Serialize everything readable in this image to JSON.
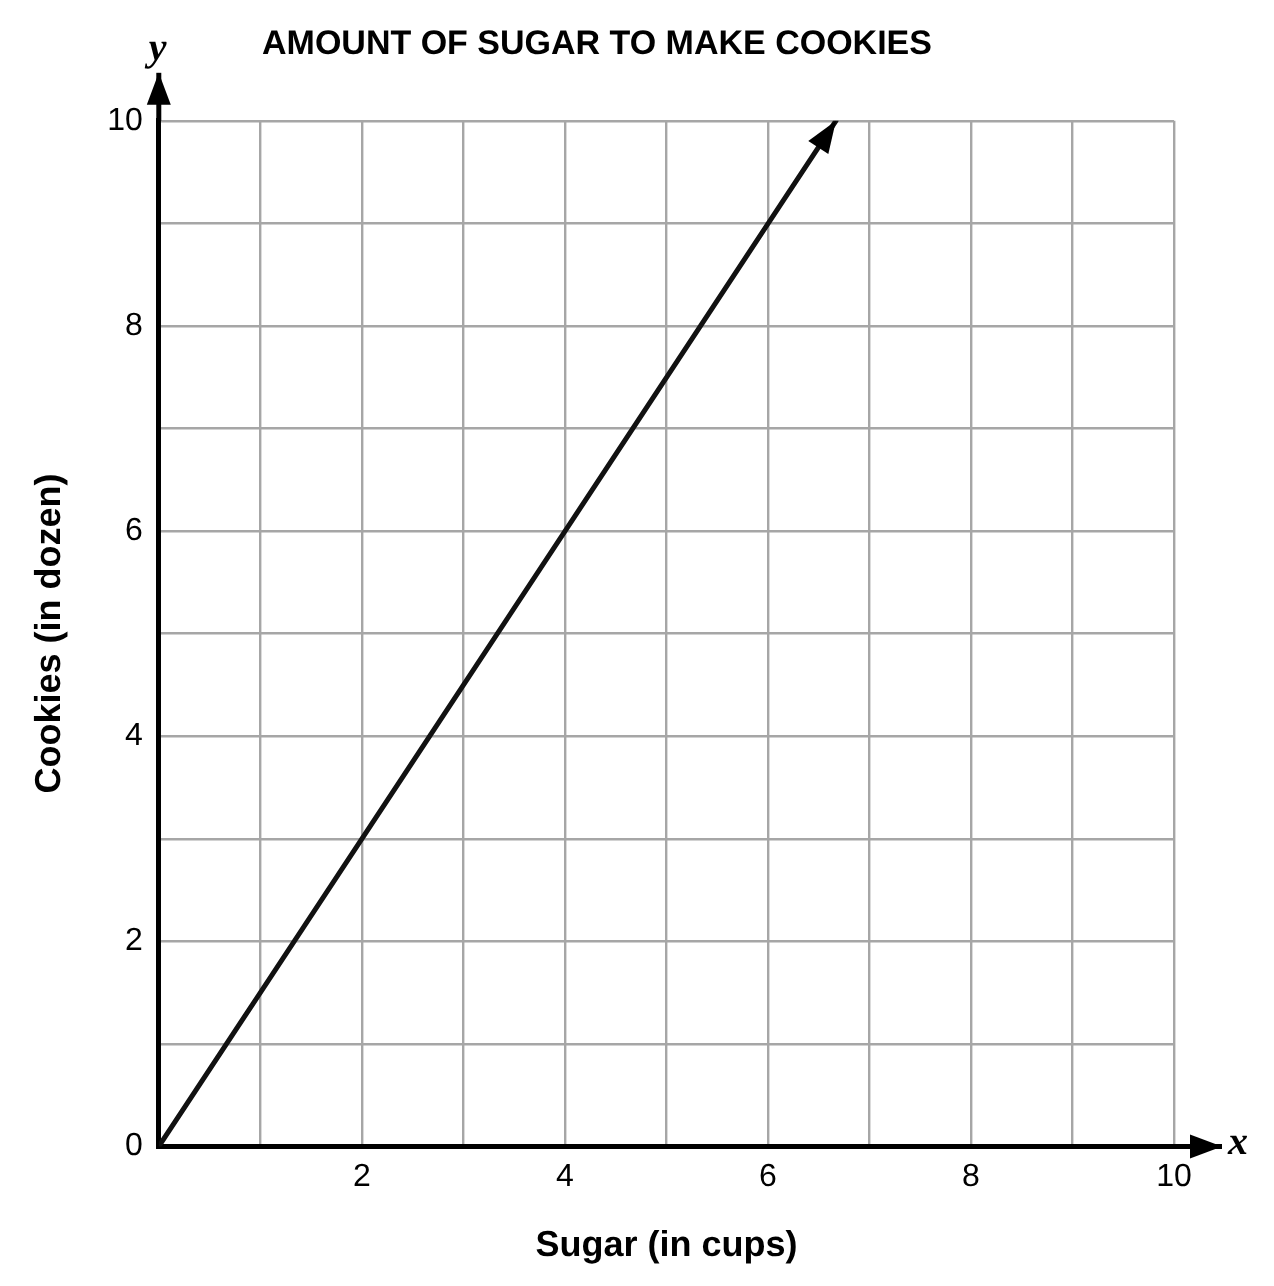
{
  "chart_data": {
    "type": "line",
    "title": "AMOUNT OF SUGAR TO MAKE COOKIES",
    "xlabel": "Sugar (in cups)",
    "ylabel": "Cookies (in dozen)",
    "annotations": [
      "x",
      "y"
    ],
    "x": [
      0,
      6.67
    ],
    "series": [
      {
        "color": "#111111",
        "values": [
          0,
          10
        ]
      }
    ],
    "xlim": [
      0,
      10
    ],
    "ylim": [
      0,
      10
    ],
    "xticks": [
      {
        "value": 0,
        "label": null
      },
      {
        "value": 1,
        "label": null
      },
      2,
      {
        "value": 3,
        "label": null
      },
      4,
      {
        "value": 5,
        "label": null
      },
      6,
      {
        "value": 7,
        "label": null
      },
      8,
      {
        "value": 9,
        "label": null
      },
      10
    ],
    "yticks": [
      0,
      {
        "value": 1,
        "label": null
      },
      2,
      {
        "value": 3,
        "label": null
      },
      4,
      {
        "value": 5,
        "label": null
      },
      6,
      {
        "value": 7,
        "label": null
      },
      8,
      {
        "value": 9,
        "label": null
      },
      10
    ],
    "grid": true,
    "legend": false,
    "marker": "none",
    "line_style": "solid"
  }
}
